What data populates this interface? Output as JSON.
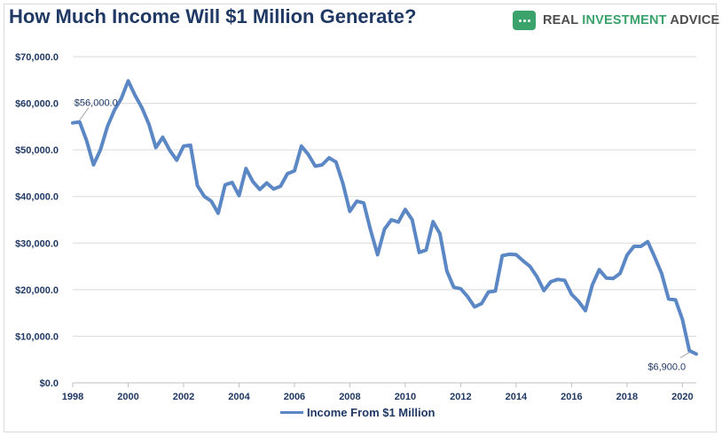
{
  "header": {
    "title": "How Much Income Will $1 Million Generate?",
    "logo_word1": "REAL",
    "logo_word2": "INVESTMENT",
    "logo_word3": "ADVICE",
    "logo_color": "#3aa36b"
  },
  "chart_data": {
    "type": "line",
    "title": "How Much Income Will $1 Million Generate?",
    "xlabel": "",
    "ylabel": "",
    "xlim": [
      1998,
      2020.5
    ],
    "ylim": [
      0,
      70000
    ],
    "x_ticks": [
      1998,
      2000,
      2002,
      2004,
      2006,
      2008,
      2010,
      2012,
      2014,
      2016,
      2018,
      2020
    ],
    "y_ticks": [
      0,
      10000,
      20000,
      30000,
      40000,
      50000,
      60000,
      70000
    ],
    "y_tick_labels": [
      "$0.0",
      "$10,000.0",
      "$20,000.0",
      "$30,000.0",
      "$40,000.0",
      "$50,000.0",
      "$60,000.0",
      "$70,000.0"
    ],
    "grid": true,
    "legend_position": "bottom",
    "series": [
      {
        "name": "Income From $1 Million",
        "color": "#5b87c5",
        "x": [
          1998.0,
          1998.25,
          1998.5,
          1998.75,
          1999.0,
          1999.25,
          1999.5,
          1999.75,
          2000.0,
          2000.25,
          2000.5,
          2000.75,
          2001.0,
          2001.25,
          2001.5,
          2001.75,
          2002.0,
          2002.25,
          2002.5,
          2002.75,
          2003.0,
          2003.25,
          2003.5,
          2003.75,
          2004.0,
          2004.25,
          2004.5,
          2004.75,
          2005.0,
          2005.25,
          2005.5,
          2005.75,
          2006.0,
          2006.25,
          2006.5,
          2006.75,
          2007.0,
          2007.25,
          2007.5,
          2007.75,
          2008.0,
          2008.25,
          2008.5,
          2008.75,
          2009.0,
          2009.25,
          2009.5,
          2009.75,
          2010.0,
          2010.25,
          2010.5,
          2010.75,
          2011.0,
          2011.25,
          2011.5,
          2011.75,
          2012.0,
          2012.25,
          2012.5,
          2012.75,
          2013.0,
          2013.25,
          2013.5,
          2013.75,
          2014.0,
          2014.25,
          2014.5,
          2014.75,
          2015.0,
          2015.25,
          2015.5,
          2015.75,
          2016.0,
          2016.25,
          2016.5,
          2016.75,
          2017.0,
          2017.25,
          2017.5,
          2017.75,
          2018.0,
          2018.25,
          2018.5,
          2018.75,
          2019.0,
          2019.25,
          2019.5,
          2019.75,
          2020.0,
          2020.25,
          2020.5
        ],
        "values": [
          55800,
          56000,
          52000,
          46800,
          50000,
          55000,
          58500,
          61000,
          64800,
          61700,
          59000,
          55500,
          50500,
          52700,
          49900,
          47800,
          50800,
          51000,
          42300,
          40000,
          39000,
          36400,
          42500,
          43000,
          40200,
          46000,
          43200,
          41500,
          42900,
          41600,
          42200,
          44900,
          45500,
          50800,
          49000,
          46500,
          46800,
          48300,
          47400,
          42800,
          36800,
          39000,
          38600,
          32700,
          27500,
          33000,
          35000,
          34500,
          37200,
          35000,
          28000,
          28500,
          34600,
          32000,
          24000,
          20500,
          20200,
          18500,
          16300,
          17000,
          19500,
          19700,
          27300,
          27600,
          27500,
          26200,
          25000,
          22800,
          19800,
          21700,
          22200,
          22000,
          19000,
          17500,
          15500,
          21000,
          24300,
          22500,
          22400,
          23500,
          27400,
          29300,
          29300,
          30300,
          27000,
          23500,
          18000,
          17800,
          13600,
          6900,
          6200
        ]
      }
    ],
    "annotations": [
      {
        "x": 1998.25,
        "y": 56000,
        "label": "$56,000.0"
      },
      {
        "x": 2020.25,
        "y": 6900,
        "label": "$6,900.0"
      }
    ]
  }
}
